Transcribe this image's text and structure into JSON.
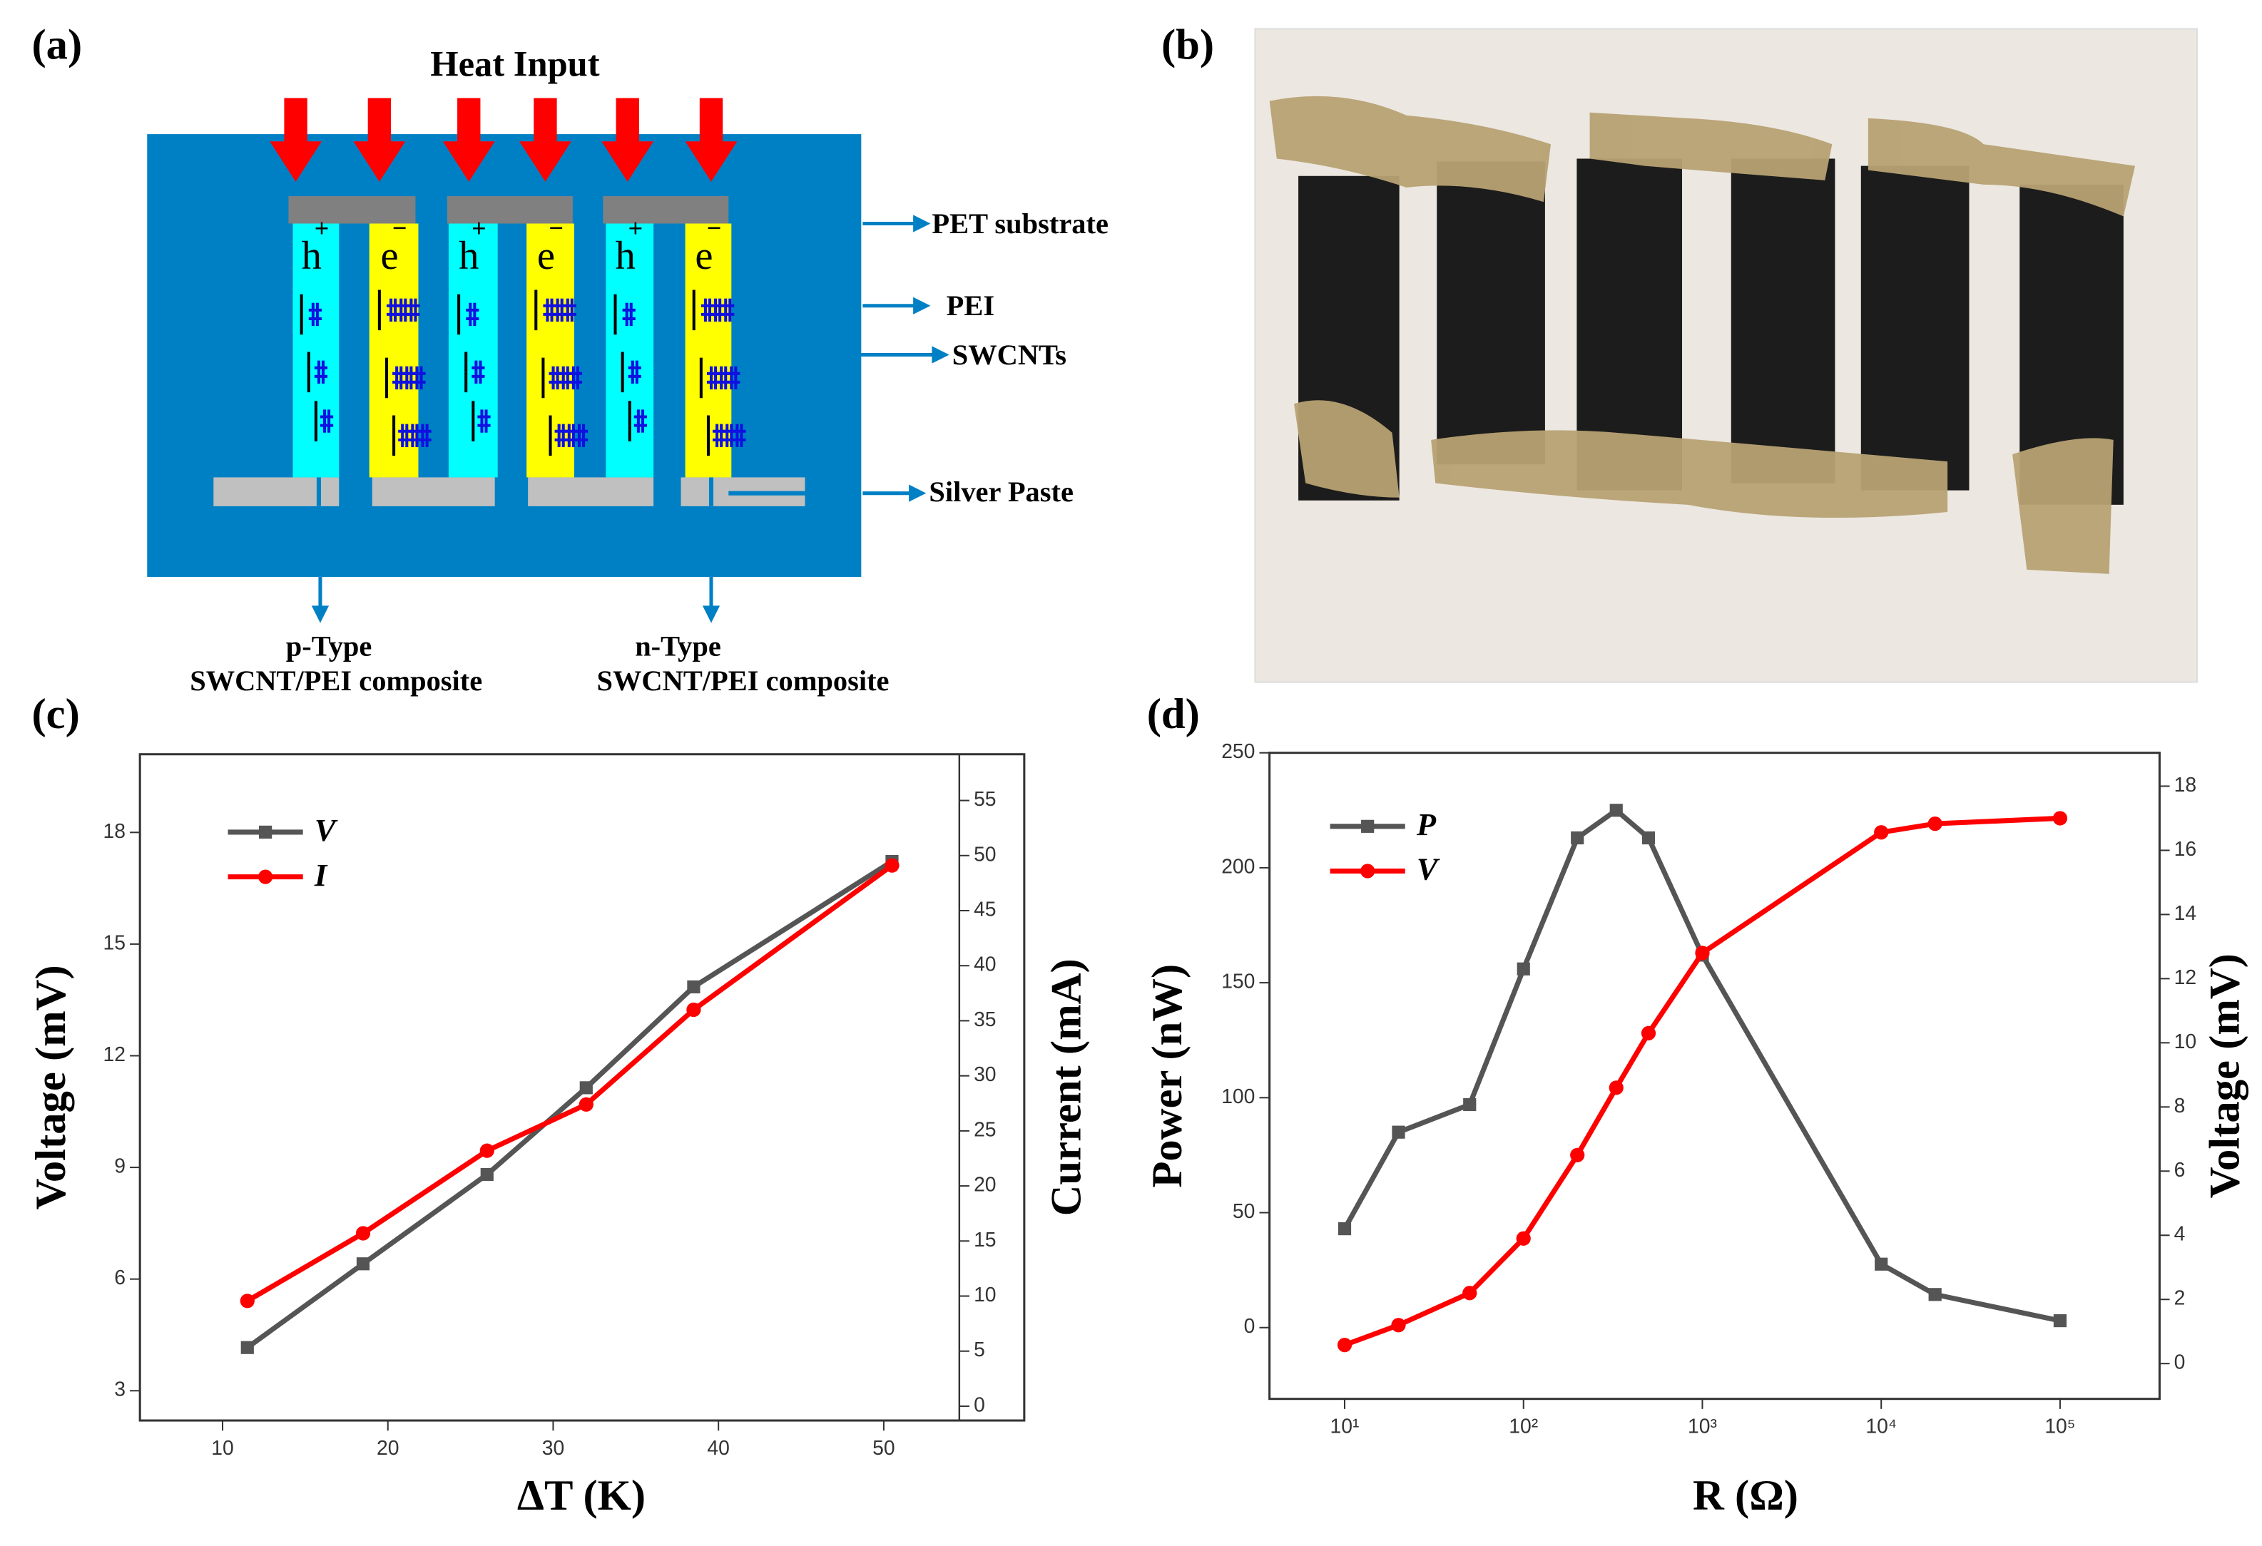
{
  "panel_labels": [
    "(a)",
    "(b)",
    "(c)",
    "(d)"
  ],
  "diagram": {
    "title": "Heat Input",
    "strips": [
      {
        "carrier": "h",
        "sign": "+"
      },
      {
        "carrier": "e",
        "sign": "−"
      },
      {
        "carrier": "h",
        "sign": "+"
      },
      {
        "carrier": "e",
        "sign": "−"
      },
      {
        "carrier": "h",
        "sign": "+"
      },
      {
        "carrier": "e",
        "sign": "−"
      }
    ],
    "callouts": [
      "PET substrate",
      "PEI",
      "SWCNTs",
      "Silver Paste"
    ],
    "p_type": [
      "p-Type",
      "SWCNT/PEI composite"
    ],
    "n_type": [
      "n-Type",
      "SWCNT/PEI composite"
    ]
  },
  "chart_data": [
    {
      "type": "line",
      "x_label": "ΔT (K)",
      "y_label": "Voltage (mV)",
      "y2_label": "Current (mA)",
      "x": [
        11.5,
        18.5,
        26,
        32,
        38.5,
        50.5
      ],
      "series": [
        {
          "name": "V",
          "color": "#555555",
          "marker": "square",
          "values": [
            4.16,
            6.41,
            8.81,
            11.14,
            13.85,
            17.22
          ]
        },
        {
          "name": "I",
          "color": "#ff0000",
          "marker": "circle",
          "axis": "y2",
          "values": [
            9.56,
            15.7,
            23.2,
            27.4,
            36.0,
            49.1
          ]
        }
      ],
      "xlim": [
        5,
        58.5
      ],
      "xticks": [
        10,
        20,
        30,
        40,
        50
      ],
      "ylim": [
        2.2,
        20.1
      ],
      "yticks": [
        3,
        6,
        9,
        12,
        15,
        18
      ],
      "y2lim": [
        -1.3,
        59.2
      ],
      "y2ticks": [
        0,
        5,
        10,
        15,
        20,
        25,
        30,
        35,
        40,
        45,
        50,
        55
      ],
      "legend": "upper left"
    },
    {
      "type": "line",
      "x_label": "R (Ω)",
      "y_label": "Power (nW)",
      "y2_label": "Voltage (mV)",
      "x_scale": "log",
      "x": [
        10,
        20,
        50,
        100,
        200,
        330,
        500,
        1000,
        10000,
        20000,
        100000
      ],
      "series": [
        {
          "name": "P",
          "color": "#555555",
          "marker": "square",
          "values": [
            43,
            85,
            97,
            156,
            213,
            225,
            213,
            162,
            27.6,
            14.4,
            3
          ]
        },
        {
          "name": "V",
          "color": "#ff0000",
          "marker": "circle",
          "axis": "y2",
          "values": [
            0.58,
            1.2,
            2.2,
            3.9,
            6.5,
            8.6,
            10.3,
            12.8,
            16.56,
            16.83,
            17.0
          ]
        }
      ],
      "xlim": [
        3.8,
        360000
      ],
      "xticks": [
        {
          "value": 10,
          "label": "10¹"
        },
        {
          "value": 100,
          "label": "10²"
        },
        {
          "value": 1000,
          "label": "10³"
        },
        {
          "value": 10000,
          "label": "10⁴"
        },
        {
          "value": 100000,
          "label": "10⁵"
        }
      ],
      "ylim": [
        -31,
        250
      ],
      "yticks": [
        0,
        50,
        100,
        150,
        200,
        250
      ],
      "y2lim": [
        -1.1,
        19.04
      ],
      "y2ticks": [
        0,
        2,
        4,
        6,
        8,
        10,
        12,
        14,
        16,
        18
      ],
      "legend": "upper left"
    }
  ]
}
